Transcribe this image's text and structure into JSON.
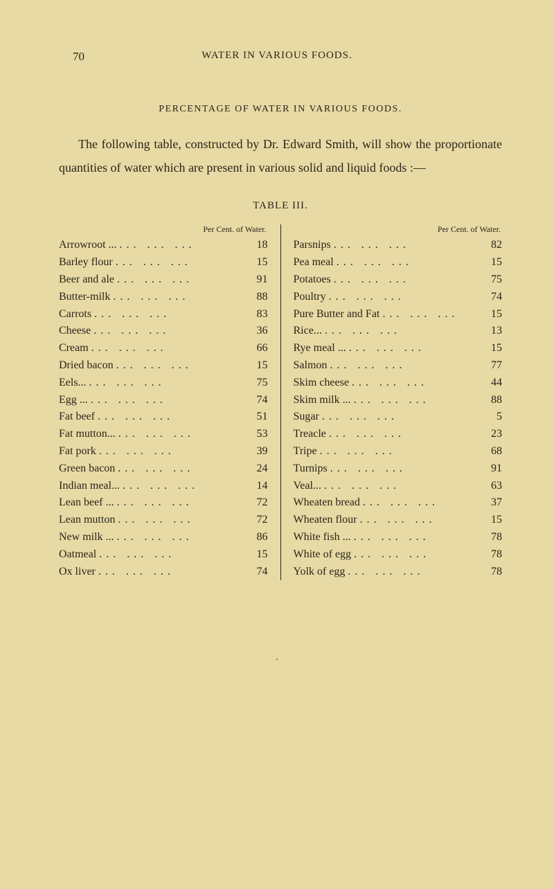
{
  "page_number": "70",
  "page_header": "WATER IN VARIOUS FOODS.",
  "section_title": "PERCENTAGE OF WATER IN VARIOUS FOODS.",
  "body_paragraph": "The following table, constructed by Dr. Edward Smith, will show the proportionate quantities of water which are present in various solid and liquid foods :—",
  "table_title": "TABLE III.",
  "column_header": "Per Cent. of Water.",
  "left_column": [
    {
      "name": "Arrowroot ...",
      "value": "18"
    },
    {
      "name": "Barley flour",
      "value": "15"
    },
    {
      "name": "Beer and ale",
      "value": "91"
    },
    {
      "name": "Butter-milk",
      "value": "88"
    },
    {
      "name": "Carrots",
      "value": "83"
    },
    {
      "name": "Cheese",
      "value": "36"
    },
    {
      "name": "Cream",
      "value": "66"
    },
    {
      "name": "Dried bacon",
      "value": "15"
    },
    {
      "name": "Eels...",
      "value": "75"
    },
    {
      "name": "Egg ...",
      "value": "74"
    },
    {
      "name": "Fat beef",
      "value": "51"
    },
    {
      "name": "Fat mutton...",
      "value": "53"
    },
    {
      "name": "Fat pork",
      "value": "39"
    },
    {
      "name": "Green bacon",
      "value": "24"
    },
    {
      "name": "Indian meal...",
      "value": "14"
    },
    {
      "name": "Lean beef ...",
      "value": "72"
    },
    {
      "name": "Lean mutton",
      "value": "72"
    },
    {
      "name": "New milk ...",
      "value": "86"
    },
    {
      "name": "Oatmeal",
      "value": "15"
    },
    {
      "name": "Ox liver",
      "value": "74"
    }
  ],
  "right_column": [
    {
      "name": "Parsnips",
      "value": "82"
    },
    {
      "name": "Pea meal",
      "value": "15"
    },
    {
      "name": "Potatoes",
      "value": "75"
    },
    {
      "name": "Poultry",
      "value": "74"
    },
    {
      "name": "Pure Butter and Fat",
      "value": "15"
    },
    {
      "name": "Rice...",
      "value": "13"
    },
    {
      "name": "Rye meal ...",
      "value": "15"
    },
    {
      "name": "Salmon",
      "value": "77"
    },
    {
      "name": "Skim cheese",
      "value": "44"
    },
    {
      "name": "Skim milk ...",
      "value": "88"
    },
    {
      "name": "Sugar",
      "value": "5"
    },
    {
      "name": "Treacle",
      "value": "23"
    },
    {
      "name": "Tripe",
      "value": "68"
    },
    {
      "name": "Turnips",
      "value": "91"
    },
    {
      "name": "Veal...",
      "value": "63"
    },
    {
      "name": "Wheaten bread",
      "value": "37"
    },
    {
      "name": "Wheaten flour",
      "value": "15"
    },
    {
      "name": "White fish ...",
      "value": "78"
    },
    {
      "name": "White of egg",
      "value": "78"
    },
    {
      "name": "Yolk of egg",
      "value": "78"
    }
  ],
  "colors": {
    "background": "#e8daa5",
    "text": "#2a2418",
    "faded": "#a08850"
  }
}
